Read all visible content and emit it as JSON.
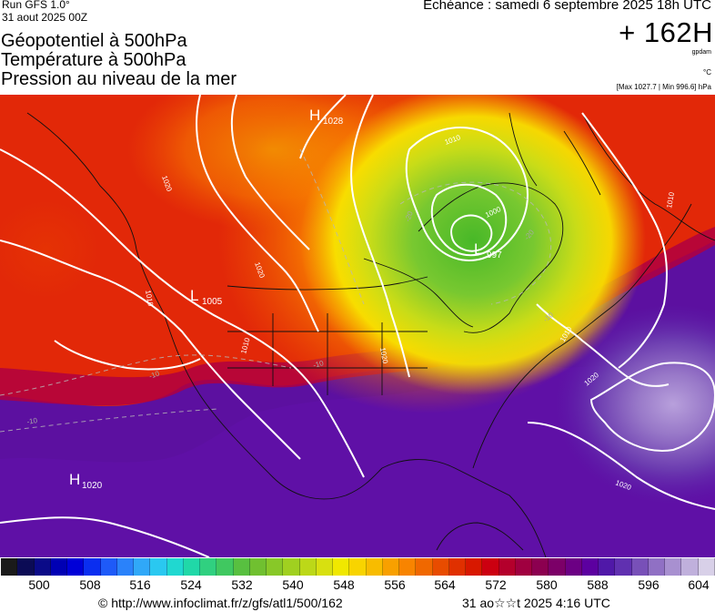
{
  "header": {
    "run": "Run GFS 1.0°",
    "run_date": "31 aout 2025 00Z",
    "titles": [
      "Géopotentiel à 500hPa",
      "Température à 500hPa",
      "Pression au niveau de la mer"
    ],
    "echeance": "Echéance : samedi 6 septembre 2025 18h UTC",
    "lead": "+ 162H",
    "unit_geo": "gpdam",
    "unit_temp": "°C",
    "maxmin": "[Max 1027.7 | Min 996.6] hPa"
  },
  "map": {
    "pressure_centers": [
      {
        "letter": "H",
        "value": "1028"
      },
      {
        "letter": "L",
        "value": "1005"
      },
      {
        "letter": "L",
        "value": "997"
      },
      {
        "letter": "H",
        "value": "1020"
      }
    ],
    "isobar_labels": [
      "1010",
      "1020",
      "1010",
      "1000",
      "1010",
      "1010",
      "1020",
      "1010",
      "1020",
      "1020",
      "1020"
    ],
    "isotherm_labels": [
      "-20",
      "-20",
      "-10",
      "-10",
      "-10",
      "-10"
    ]
  },
  "legend": {
    "ticks": [
      "500",
      "508",
      "516",
      "524",
      "532",
      "540",
      "548",
      "556",
      "564",
      "572",
      "580",
      "588",
      "596",
      "604"
    ],
    "colors": [
      "#1a1a1a",
      "#0b0b55",
      "#0a0a88",
      "#0000b4",
      "#0000d8",
      "#0a2ef0",
      "#1e5af8",
      "#2a82fa",
      "#30a8f8",
      "#2ac8f0",
      "#20d8d0",
      "#20d8a8",
      "#30d080",
      "#40c860",
      "#58c040",
      "#70c030",
      "#88c828",
      "#a0d020",
      "#bcd818",
      "#d8e010",
      "#f0e800",
      "#f8d400",
      "#f8bc00",
      "#f8a000",
      "#f88400",
      "#f06800",
      "#e84c00",
      "#e03000",
      "#d81800",
      "#cc0010",
      "#b4002c",
      "#a00040",
      "#8c0050",
      "#7c0068",
      "#6c0084",
      "#5c00a0",
      "#5018a8",
      "#6030b0",
      "#7850b8",
      "#9070c4",
      "#a890d0",
      "#c0b0dc",
      "#d8d0e8"
    ]
  },
  "footer": {
    "url": "© http://www.infoclimat.fr/z/gfs/atl1/500/162",
    "generated": "31 ao☆☆t 2025  4:16 UTC"
  }
}
